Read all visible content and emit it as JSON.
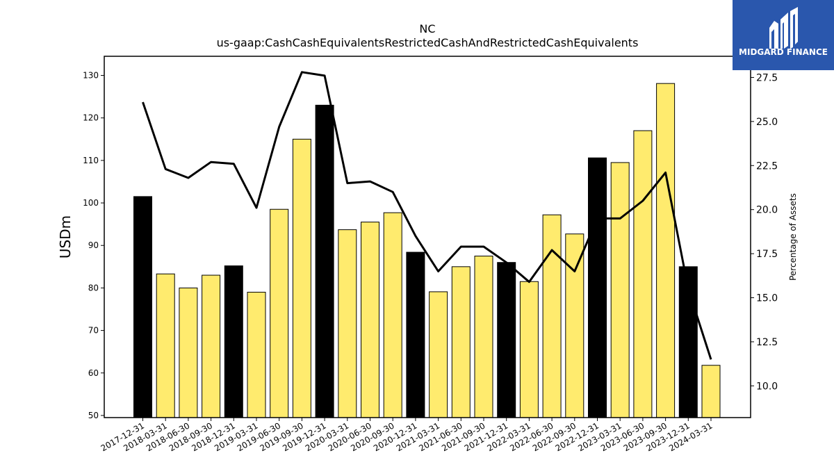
{
  "chart_data": {
    "type": "bar",
    "title": "NC",
    "subtitle": "us-gaap:CashCashEquivalentsRestrictedCashAndRestrictedCashEquivalents",
    "ylabel": "USDm",
    "y2label": "Percentage of Assets",
    "ylim": [
      49.5,
      134.5
    ],
    "y2lim": [
      8.2,
      28.7
    ],
    "yticks": [
      "50",
      "60",
      "70",
      "80",
      "90",
      "100",
      "110",
      "120",
      "130"
    ],
    "y2ticks": [
      "10.0",
      "12.5",
      "15.0",
      "17.5",
      "20.0",
      "22.5",
      "25.0",
      "27.5"
    ],
    "categories": [
      "2017-12-31",
      "2018-03-31",
      "2018-06-30",
      "2018-09-30",
      "2018-12-31",
      "2019-03-31",
      "2019-06-30",
      "2019-09-30",
      "2019-12-31",
      "2020-03-31",
      "2020-06-30",
      "2020-09-30",
      "2020-12-31",
      "2021-03-31",
      "2021-06-30",
      "2021-09-30",
      "2021-12-31",
      "2022-03-31",
      "2022-06-30",
      "2022-09-30",
      "2022-12-31",
      "2023-03-31",
      "2023-06-30",
      "2023-09-30",
      "2023-12-31",
      "2024-03-31"
    ],
    "series": [
      {
        "values": [
          101.5,
          83.3,
          80.0,
          83.0,
          85.2,
          79.0,
          98.5,
          115.0,
          123.0,
          93.7,
          95.5,
          97.7,
          88.4,
          79.1,
          85.0,
          87.5,
          86.0,
          81.5,
          97.2,
          92.7,
          110.6,
          109.5,
          117.0,
          128.1,
          85.0,
          61.8
        ],
        "highlight": [
          true,
          false,
          false,
          false,
          true,
          false,
          false,
          false,
          true,
          false,
          false,
          false,
          true,
          false,
          false,
          false,
          true,
          false,
          false,
          false,
          true,
          false,
          false,
          false,
          true,
          false
        ],
        "highlight_color": "#000000",
        "color": "#ffeb6e",
        "axis": "left"
      },
      {
        "type": "line",
        "values": [
          26.1,
          22.3,
          21.8,
          22.7,
          22.6,
          20.1,
          24.7,
          27.8,
          27.6,
          21.5,
          21.6,
          21.0,
          18.5,
          16.5,
          17.9,
          17.9,
          17.0,
          15.9,
          17.7,
          16.5,
          19.5,
          19.5,
          20.5,
          22.1,
          15.5,
          11.5
        ],
        "color": "#000000",
        "axis": "right"
      }
    ]
  },
  "logo": {
    "text": "MIDGARD FINANCE",
    "background": "#2a57ad"
  }
}
